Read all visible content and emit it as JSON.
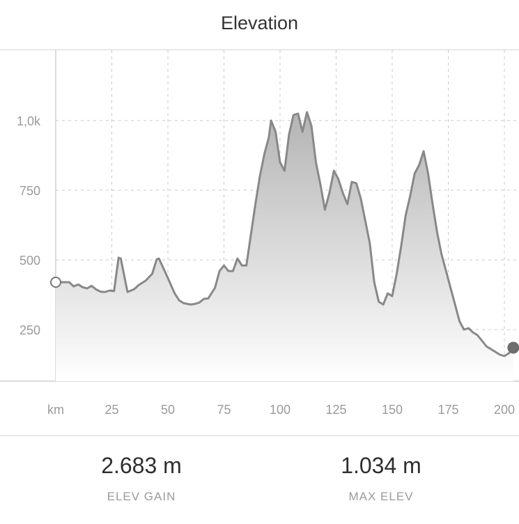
{
  "header": {
    "title": "Elevation"
  },
  "chart_data": {
    "type": "area",
    "title": "",
    "xlabel": "km",
    "ylabel": "",
    "x_unit": "km",
    "xlim": [
      0,
      207
    ],
    "ylim": [
      60,
      1185
    ],
    "x_ticks": [
      {
        "value": 25,
        "label": "25"
      },
      {
        "value": 50,
        "label": "50"
      },
      {
        "value": 75,
        "label": "75"
      },
      {
        "value": 100,
        "label": "100"
      },
      {
        "value": 125,
        "label": "125"
      },
      {
        "value": 150,
        "label": "150"
      },
      {
        "value": 175,
        "label": "175"
      },
      {
        "value": 200,
        "label": "200"
      }
    ],
    "y_ticks": [
      {
        "value": 250,
        "label": "250"
      },
      {
        "value": 500,
        "label": "500"
      },
      {
        "value": 750,
        "label": "750"
      },
      {
        "value": 1000,
        "label": "1,0k"
      }
    ],
    "grid": true,
    "fill_color": "#c8c8c8",
    "line_color": "#888888",
    "series": [
      {
        "x": [
          0,
          2,
          6,
          8,
          10,
          12,
          14,
          16,
          18,
          20,
          22,
          24,
          26,
          28,
          29,
          30,
          32,
          35,
          37,
          40,
          43,
          45,
          46,
          48,
          50,
          53,
          55,
          57,
          60,
          62,
          64,
          66,
          68,
          69,
          71,
          73,
          75,
          77,
          79,
          81,
          83,
          85,
          87,
          89,
          91,
          93,
          95,
          96,
          98,
          100,
          102,
          104,
          106,
          108,
          110,
          112,
          114,
          116,
          118,
          120,
          122,
          124,
          126,
          128,
          130,
          132,
          134,
          136,
          138,
          140,
          142,
          144,
          146,
          148,
          150,
          152,
          154,
          156,
          158,
          160,
          162,
          164,
          166,
          168,
          170,
          172,
          174,
          176,
          178,
          180,
          182,
          184,
          186,
          188,
          190,
          192,
          194,
          196,
          198,
          200,
          202,
          204
        ],
        "y": [
          420,
          420,
          420,
          405,
          412,
          402,
          398,
          407,
          394,
          386,
          385,
          390,
          388,
          508,
          505,
          465,
          385,
          395,
          410,
          425,
          450,
          502,
          505,
          470,
          435,
          380,
          355,
          345,
          340,
          342,
          347,
          360,
          362,
          375,
          400,
          460,
          480,
          460,
          460,
          505,
          480,
          480,
          590,
          700,
          800,
          880,
          940,
          1000,
          960,
          850,
          820,
          950,
          1020,
          1025,
          960,
          1030,
          980,
          850,
          770,
          680,
          740,
          820,
          790,
          740,
          700,
          780,
          775,
          720,
          640,
          560,
          420,
          350,
          340,
          380,
          370,
          450,
          550,
          660,
          730,
          810,
          840,
          890,
          810,
          700,
          600,
          520,
          460,
          400,
          340,
          280,
          250,
          255,
          240,
          230,
          210,
          190,
          180,
          170,
          160,
          155,
          165,
          185
        ]
      }
    ],
    "start_marker": "hollow-circle",
    "end_marker": "filled-circle"
  },
  "stats": {
    "elev_gain": {
      "value": "2.683 m",
      "label": "ELEV GAIN"
    },
    "max_elev": {
      "value": "1.034 m",
      "label": "MAX ELEV"
    }
  }
}
